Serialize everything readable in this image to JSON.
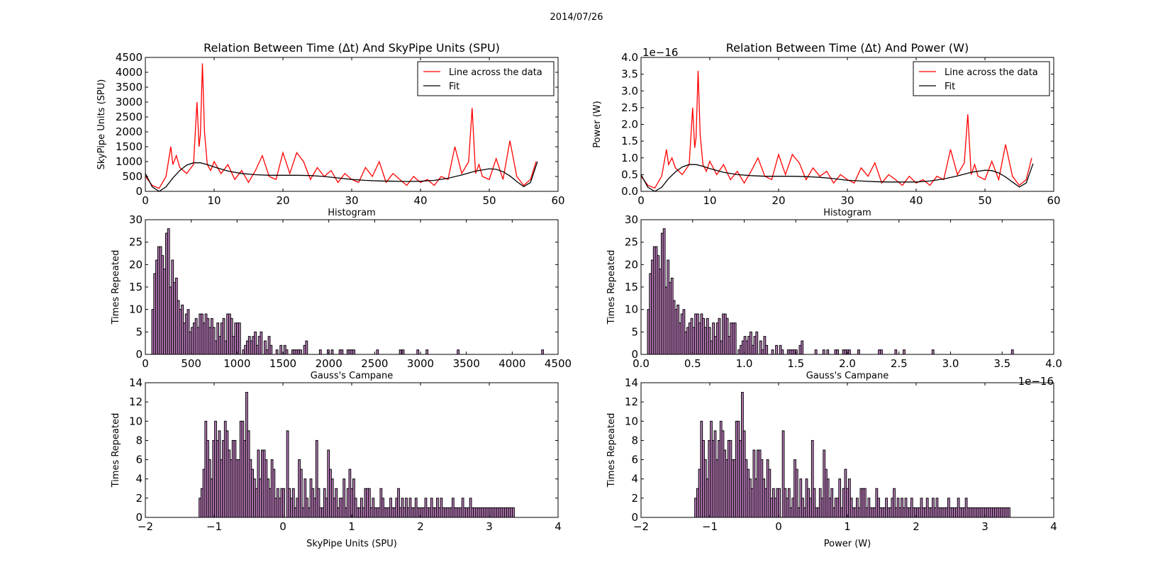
{
  "figure": {
    "suptitle": "2014/07/26"
  },
  "chart_data": [
    {
      "id": "spu_time",
      "type": "line",
      "title": "Relation Between Time (Δt) And SkyPipe Units (SPU)",
      "xlabel": "",
      "ylabel": "SkyPipe Units (SPU)",
      "xlim": [
        0,
        60
      ],
      "ylim": [
        0,
        4500
      ],
      "xticks": [
        0,
        10,
        20,
        30,
        40,
        50,
        60
      ],
      "yticks": [
        0,
        500,
        1000,
        1500,
        2000,
        2500,
        3000,
        3500,
        4000,
        4500
      ],
      "legend": {
        "placement": "top-right",
        "entries": [
          "Line across the data",
          "Fit"
        ]
      },
      "series": [
        {
          "name": "Line across the data",
          "color": "#ff0000",
          "x": [
            0,
            1,
            2,
            3,
            3.7,
            4,
            4.5,
            5,
            6,
            7,
            7.5,
            7.8,
            8,
            8.3,
            8.6,
            9,
            9.5,
            10,
            11,
            12,
            13,
            14,
            15,
            16,
            17,
            18,
            19,
            20,
            21,
            22,
            23,
            24,
            25,
            26,
            27,
            28,
            29,
            30,
            31,
            32,
            33,
            34,
            35,
            36,
            37,
            38,
            39,
            40,
            41,
            42,
            43,
            44,
            45,
            46,
            47,
            47.5,
            48,
            48.5,
            49,
            50,
            51,
            52,
            53,
            54,
            55,
            56,
            56.8
          ],
          "y": [
            500,
            200,
            100,
            500,
            1500,
            900,
            1200,
            800,
            600,
            900,
            3000,
            1500,
            1900,
            4300,
            2000,
            900,
            700,
            1000,
            600,
            900,
            400,
            700,
            300,
            700,
            1200,
            500,
            400,
            1300,
            600,
            1300,
            1000,
            400,
            800,
            500,
            700,
            300,
            600,
            400,
            300,
            800,
            500,
            1000,
            300,
            600,
            400,
            200,
            500,
            300,
            400,
            200,
            500,
            400,
            1500,
            600,
            1000,
            2800,
            600,
            900,
            500,
            400,
            1100,
            400,
            1700,
            500,
            200,
            400,
            1000
          ]
        },
        {
          "name": "Fit",
          "color": "#000000",
          "x": [
            0,
            1,
            2,
            3,
            4,
            5,
            6,
            7,
            8,
            9,
            10,
            12,
            14,
            16,
            18,
            20,
            22,
            24,
            26,
            28,
            30,
            32,
            34,
            36,
            38,
            40,
            42,
            44,
            46,
            48,
            50,
            51,
            52,
            53,
            54,
            55,
            56,
            57
          ],
          "y": [
            600,
            150,
            0,
            150,
            450,
            700,
            880,
            960,
            960,
            900,
            820,
            680,
            600,
            560,
            540,
            540,
            540,
            530,
            500,
            450,
            400,
            370,
            350,
            340,
            330,
            340,
            370,
            440,
            550,
            680,
            760,
            740,
            660,
            520,
            330,
            160,
            300,
            1000
          ]
        }
      ]
    },
    {
      "id": "power_time",
      "type": "line",
      "title": "Relation Between Time (Δt) And Power (W)",
      "xlabel": "",
      "ylabel": "Power (W)",
      "y_offset_label": "1e−16",
      "xlim": [
        0,
        60
      ],
      "ylim": [
        0,
        4.0
      ],
      "xticks": [
        0,
        10,
        20,
        30,
        40,
        50,
        60
      ],
      "yticks": [
        0.0,
        0.5,
        1.0,
        1.5,
        2.0,
        2.5,
        3.0,
        3.5,
        4.0
      ],
      "legend": {
        "placement": "top-right",
        "entries": [
          "Line across the data",
          "Fit"
        ]
      },
      "series": [
        {
          "name": "Line across the data",
          "color": "#ff0000",
          "x": [
            0,
            1,
            2,
            3,
            3.7,
            4,
            4.5,
            5,
            6,
            7,
            7.5,
            7.8,
            8,
            8.3,
            8.6,
            9,
            9.5,
            10,
            11,
            12,
            13,
            14,
            15,
            16,
            17,
            18,
            19,
            20,
            21,
            22,
            23,
            24,
            25,
            26,
            27,
            28,
            29,
            30,
            31,
            32,
            33,
            34,
            35,
            36,
            37,
            38,
            39,
            40,
            41,
            42,
            43,
            44,
            45,
            46,
            47,
            47.5,
            48,
            48.5,
            49,
            50,
            51,
            52,
            53,
            54,
            55,
            56,
            56.8
          ],
          "y": [
            0.45,
            0.18,
            0.1,
            0.45,
            1.25,
            0.8,
            1.0,
            0.7,
            0.5,
            0.8,
            2.5,
            1.3,
            1.6,
            3.6,
            1.7,
            0.8,
            0.6,
            0.9,
            0.5,
            0.8,
            0.35,
            0.6,
            0.25,
            0.6,
            1.0,
            0.45,
            0.35,
            1.1,
            0.5,
            1.1,
            0.85,
            0.35,
            0.7,
            0.45,
            0.6,
            0.25,
            0.5,
            0.35,
            0.25,
            0.7,
            0.45,
            0.85,
            0.25,
            0.5,
            0.35,
            0.18,
            0.45,
            0.25,
            0.35,
            0.18,
            0.45,
            0.35,
            1.25,
            0.5,
            0.85,
            2.3,
            0.5,
            0.8,
            0.45,
            0.35,
            0.9,
            0.35,
            1.4,
            0.45,
            0.18,
            0.35,
            1.0
          ]
        },
        {
          "name": "Fit",
          "color": "#000000",
          "x": [
            0,
            1,
            2,
            3,
            4,
            5,
            6,
            7,
            8,
            9,
            10,
            12,
            14,
            16,
            18,
            20,
            22,
            24,
            26,
            28,
            30,
            32,
            34,
            36,
            38,
            40,
            42,
            44,
            46,
            48,
            50,
            51,
            52,
            53,
            54,
            55,
            56,
            57
          ],
          "y": [
            0.5,
            0.12,
            0.0,
            0.12,
            0.38,
            0.58,
            0.73,
            0.8,
            0.8,
            0.75,
            0.68,
            0.57,
            0.5,
            0.47,
            0.45,
            0.45,
            0.45,
            0.44,
            0.42,
            0.38,
            0.33,
            0.31,
            0.29,
            0.28,
            0.28,
            0.28,
            0.31,
            0.37,
            0.46,
            0.57,
            0.63,
            0.62,
            0.55,
            0.43,
            0.28,
            0.13,
            0.25,
            0.83
          ]
        }
      ]
    },
    {
      "id": "spu_hist",
      "type": "bar",
      "title": "Histogram",
      "xlabel": "",
      "ylabel": "Times Repeated",
      "xlim": [
        0,
        4500
      ],
      "ylim": [
        0,
        30
      ],
      "xticks": [
        0,
        500,
        1000,
        1500,
        2000,
        2500,
        3000,
        3500,
        4000,
        4500
      ],
      "yticks": [
        0,
        5,
        10,
        15,
        20,
        25,
        30
      ],
      "bin_width": 21.5,
      "bin_start": 70,
      "values": [
        10,
        18,
        21,
        24,
        24,
        22,
        19,
        27,
        28,
        15,
        21,
        16,
        17,
        12,
        10,
        11,
        7,
        9,
        10,
        5,
        6,
        7,
        8,
        6,
        9,
        9,
        7,
        9,
        8,
        6,
        8,
        6,
        3,
        7,
        4,
        7,
        8,
        3,
        9,
        9,
        8,
        4,
        7,
        7,
        7,
        0,
        1,
        2,
        3,
        4,
        3,
        4,
        5,
        2,
        4,
        5,
        0,
        3,
        1,
        4,
        2,
        0,
        0,
        1,
        0,
        2,
        0,
        2,
        1,
        0,
        0,
        1,
        1,
        1,
        1,
        1,
        0,
        2,
        3,
        0,
        0,
        0,
        0,
        0,
        0,
        1,
        0,
        0,
        0,
        1,
        0,
        1,
        0,
        0,
        0,
        1,
        1,
        0,
        0,
        1,
        1,
        1,
        1
      ],
      "outliers": [
        {
          "x": 2520,
          "v": 1
        },
        {
          "x": 2770,
          "v": 1
        },
        {
          "x": 2800,
          "v": 1
        },
        {
          "x": 2960,
          "v": 1
        },
        {
          "x": 3060,
          "v": 1
        },
        {
          "x": 3400,
          "v": 1
        },
        {
          "x": 4320,
          "v": 1
        }
      ]
    },
    {
      "id": "power_hist",
      "type": "bar",
      "title": "Histogram",
      "xlabel": "",
      "ylabel": "Times Repeated",
      "x_offset_label": "1e−16",
      "xlim": [
        0,
        4.0
      ],
      "ylim": [
        0,
        30
      ],
      "xticks": [
        0.0,
        0.5,
        1.0,
        1.5,
        2.0,
        2.5,
        3.0,
        3.5,
        4.0
      ],
      "yticks": [
        0,
        5,
        10,
        15,
        20,
        25,
        30
      ],
      "bin_width": 0.0191,
      "bin_start": 0.062,
      "values": [
        10,
        18,
        21,
        24,
        24,
        22,
        19,
        27,
        28,
        15,
        21,
        16,
        17,
        12,
        10,
        11,
        7,
        9,
        10,
        5,
        6,
        7,
        8,
        6,
        9,
        9,
        7,
        9,
        8,
        6,
        8,
        6,
        3,
        7,
        4,
        7,
        8,
        3,
        9,
        9,
        8,
        4,
        7,
        7,
        7,
        0,
        1,
        2,
        3,
        4,
        3,
        4,
        5,
        2,
        4,
        5,
        0,
        3,
        1,
        4,
        2,
        0,
        0,
        1,
        0,
        2,
        0,
        2,
        1,
        0,
        0,
        1,
        1,
        1,
        1,
        1,
        0,
        2,
        3,
        0,
        0,
        0,
        0,
        0,
        0,
        1,
        0,
        0,
        0,
        1,
        0,
        1,
        0,
        0,
        0,
        1,
        1,
        0,
        0,
        1,
        1,
        1,
        1
      ],
      "outliers": [
        {
          "x": 2.1,
          "v": 1
        },
        {
          "x": 2.3,
          "v": 1
        },
        {
          "x": 2.32,
          "v": 1
        },
        {
          "x": 2.46,
          "v": 1
        },
        {
          "x": 2.54,
          "v": 1
        },
        {
          "x": 2.82,
          "v": 1
        },
        {
          "x": 3.59,
          "v": 1
        }
      ]
    },
    {
      "id": "spu_gauss",
      "type": "bar",
      "title": "Gauss's Campane",
      "xlabel": "SkyPipe Units (SPU)",
      "ylabel": "Times Repeated",
      "xlim": [
        -2,
        4
      ],
      "ylim": [
        0,
        14
      ],
      "xticks": [
        -2,
        -1,
        0,
        1,
        2,
        3,
        4
      ],
      "yticks": [
        0,
        2,
        4,
        6,
        8,
        10,
        12,
        14
      ],
      "bin_width": 0.0283,
      "bin_start": -1.22,
      "values": [
        2,
        3,
        5,
        10,
        8,
        6,
        4,
        8,
        10,
        8,
        9,
        6,
        8,
        10,
        9,
        7,
        6,
        8,
        8,
        6,
        6,
        10,
        10,
        8,
        13,
        9,
        6,
        5,
        4,
        3,
        7,
        4,
        7,
        7,
        6,
        4,
        3,
        6,
        5,
        2,
        3,
        2,
        3,
        3,
        0,
        9,
        3,
        2,
        3,
        1,
        2,
        6,
        5,
        1,
        4,
        2,
        1,
        4,
        3,
        2,
        8,
        3,
        1,
        1,
        3,
        2,
        7,
        5,
        4,
        2,
        3,
        1,
        2,
        2,
        4,
        1,
        3,
        5,
        3,
        4,
        2,
        1,
        1,
        2,
        1,
        3,
        3,
        3,
        1,
        2,
        1,
        1,
        1,
        3,
        2,
        1,
        1,
        1,
        2,
        1,
        1,
        2,
        3,
        1,
        2,
        1,
        2,
        1,
        2,
        1,
        1,
        2,
        1,
        1,
        1,
        1,
        2,
        1,
        1,
        2,
        1,
        1,
        2,
        1,
        2,
        1,
        1,
        1,
        1,
        1,
        2,
        1,
        1,
        1,
        1,
        2,
        1,
        1,
        1,
        2,
        1,
        1,
        1,
        1,
        1,
        1,
        1,
        1,
        1,
        1,
        1,
        1,
        1,
        1,
        1,
        1,
        1,
        1,
        1,
        1,
        1,
        1
      ]
    },
    {
      "id": "power_gauss",
      "type": "bar",
      "title": "Gauss's Campane",
      "xlabel": "Power (W)",
      "ylabel": "Times Repeated",
      "xlim": [
        -2,
        4
      ],
      "ylim": [
        0,
        14
      ],
      "xticks": [
        -2,
        -1,
        0,
        1,
        2,
        3,
        4
      ],
      "yticks": [
        0,
        2,
        4,
        6,
        8,
        10,
        12,
        14
      ],
      "bin_width": 0.0283,
      "bin_start": -1.22,
      "values": [
        2,
        3,
        5,
        10,
        8,
        6,
        4,
        8,
        10,
        8,
        9,
        6,
        8,
        10,
        9,
        7,
        6,
        8,
        8,
        6,
        6,
        10,
        10,
        8,
        13,
        9,
        6,
        5,
        4,
        3,
        7,
        4,
        7,
        7,
        6,
        4,
        3,
        6,
        5,
        2,
        3,
        2,
        3,
        3,
        0,
        9,
        3,
        2,
        3,
        1,
        2,
        6,
        5,
        1,
        4,
        2,
        1,
        4,
        3,
        2,
        8,
        3,
        1,
        1,
        3,
        2,
        7,
        5,
        4,
        2,
        3,
        1,
        2,
        2,
        4,
        1,
        3,
        5,
        3,
        4,
        2,
        1,
        1,
        2,
        1,
        3,
        3,
        3,
        1,
        2,
        1,
        1,
        1,
        3,
        2,
        1,
        1,
        1,
        2,
        1,
        1,
        2,
        3,
        1,
        2,
        1,
        2,
        1,
        2,
        1,
        1,
        2,
        1,
        1,
        1,
        1,
        2,
        1,
        1,
        2,
        1,
        1,
        2,
        1,
        2,
        1,
        1,
        1,
        1,
        1,
        2,
        1,
        1,
        1,
        1,
        2,
        1,
        1,
        1,
        2,
        1,
        1,
        1,
        1,
        1,
        1,
        1,
        1,
        1,
        1,
        1,
        1,
        1,
        1,
        1,
        1,
        1,
        1,
        1,
        1,
        1,
        1
      ]
    }
  ]
}
